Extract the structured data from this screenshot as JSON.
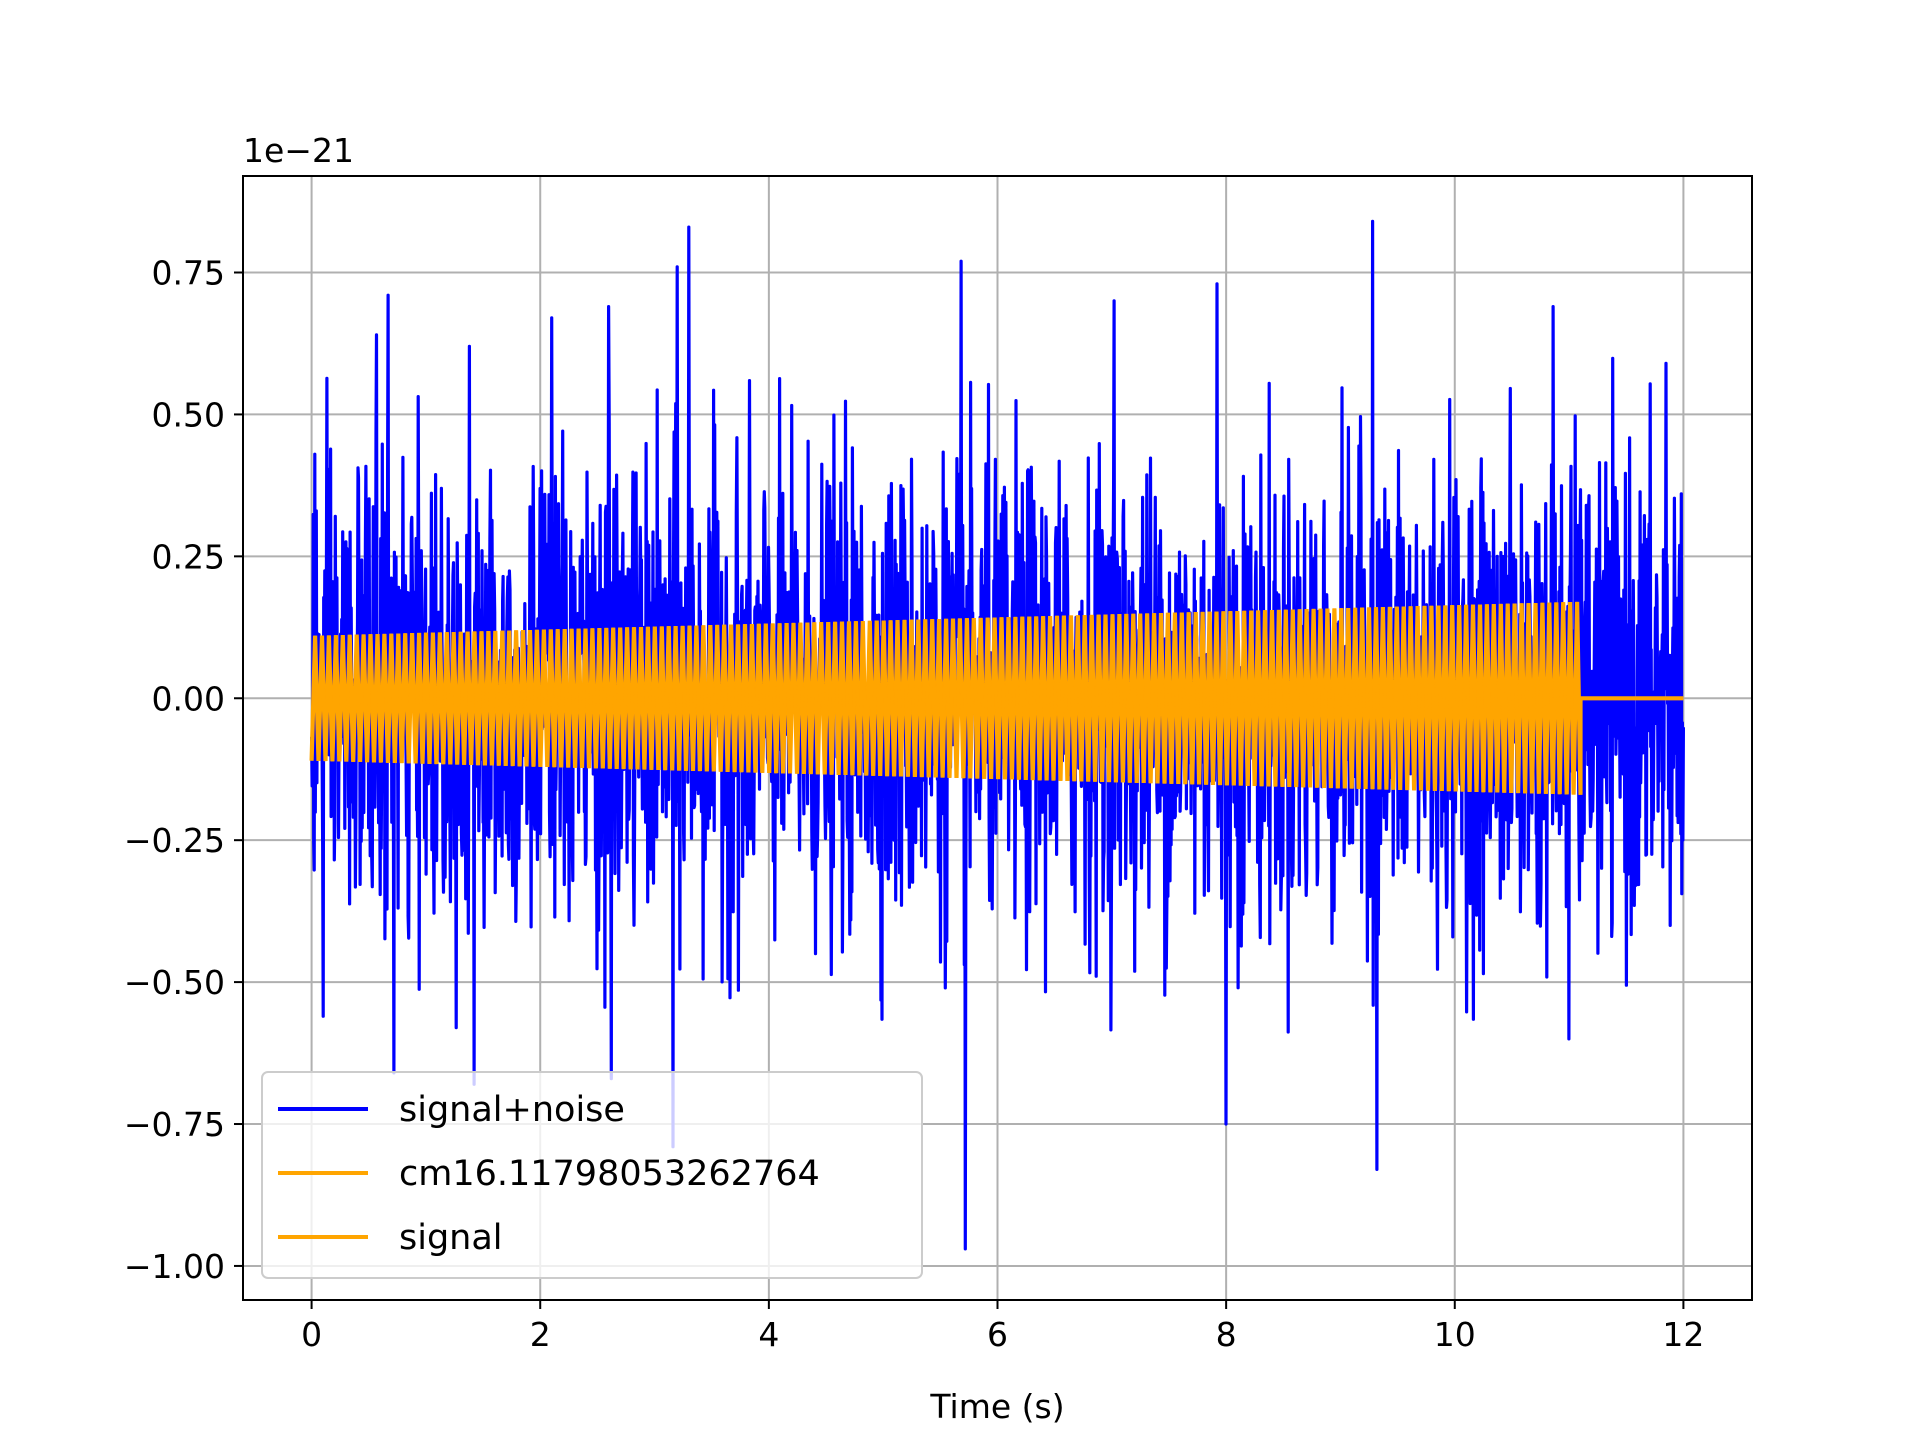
{
  "chart_data": {
    "type": "line",
    "title": "",
    "xlabel": "Time (s)",
    "ylabel": "",
    "y_offset_label": "1e−21",
    "y_scale_exponent": -21,
    "xlim": [
      -0.6,
      12.6
    ],
    "ylim": [
      -1.06,
      0.92
    ],
    "x_ticks": [
      0,
      2,
      4,
      6,
      8,
      10,
      12
    ],
    "x_tick_labels": [
      "0",
      "2",
      "4",
      "6",
      "8",
      "10",
      "12"
    ],
    "y_ticks": [
      -1.0,
      -0.75,
      -0.5,
      -0.25,
      0.0,
      0.25,
      0.5,
      0.75
    ],
    "y_tick_labels": [
      "−1.00",
      "−0.75",
      "−0.50",
      "−0.25",
      "0.00",
      "0.25",
      "0.50",
      "0.75"
    ],
    "grid": true,
    "legend_position": "lower-left",
    "series": [
      {
        "name": "signal+noise",
        "color": "#0000ff",
        "x_range": [
          0,
          12
        ],
        "description_of_values": "noisy oscillation around 0 with peaks near ±0.85",
        "peaks": [
          {
            "x": 0.03,
            "y": 0.43
          },
          {
            "x": 0.1,
            "y": -0.56
          },
          {
            "x": 0.57,
            "y": 0.64
          },
          {
            "x": 0.67,
            "y": 0.71
          },
          {
            "x": 0.72,
            "y": -0.66
          },
          {
            "x": 1.38,
            "y": 0.62
          },
          {
            "x": 1.42,
            "y": -0.68
          },
          {
            "x": 2.1,
            "y": 0.67
          },
          {
            "x": 2.6,
            "y": 0.69
          },
          {
            "x": 2.62,
            "y": -0.67
          },
          {
            "x": 3.2,
            "y": 0.76
          },
          {
            "x": 3.16,
            "y": -0.79
          },
          {
            "x": 3.3,
            "y": 0.83
          },
          {
            "x": 5.68,
            "y": 0.77
          },
          {
            "x": 5.72,
            "y": -0.97
          },
          {
            "x": 7.02,
            "y": 0.7
          },
          {
            "x": 7.92,
            "y": 0.73
          },
          {
            "x": 8.0,
            "y": -0.75
          },
          {
            "x": 9.28,
            "y": 0.84
          },
          {
            "x": 9.32,
            "y": -0.83
          },
          {
            "x": 10.86,
            "y": 0.69
          },
          {
            "x": 11.0,
            "y": -0.6
          },
          {
            "x": 11.85,
            "y": 0.59
          },
          {
            "x": 11.98,
            "y": 0.36
          }
        ]
      },
      {
        "name": "cm16.11798053262764",
        "color": "#ffa500",
        "x_range": [
          0,
          11.1
        ],
        "amplitude_start": 0.11,
        "amplitude_end": 0.17
      },
      {
        "name": "signal",
        "color": "#ffa500",
        "x_range": [
          0,
          12
        ],
        "amplitude_start": 0.11,
        "amplitude_end": 0.17,
        "zero_after": 11.1
      }
    ]
  }
}
